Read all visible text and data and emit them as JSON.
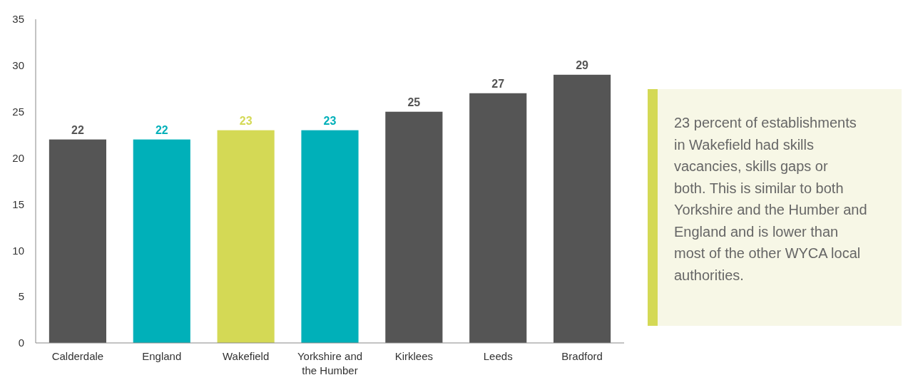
{
  "chart_data": {
    "type": "bar",
    "categories": [
      "Calderdale",
      "England",
      "Wakefield",
      "Yorkshire and the Humber",
      "Kirklees",
      "Leeds",
      "Bradford"
    ],
    "values": [
      22,
      22,
      23,
      23,
      25,
      27,
      29
    ],
    "colors": [
      "#555555",
      "#00b0b9",
      "#d4d955",
      "#00b0b9",
      "#555555",
      "#555555",
      "#555555"
    ],
    "ylim": [
      0,
      35
    ],
    "yticks": [
      0,
      5,
      10,
      15,
      20,
      25,
      30,
      35
    ],
    "grid": false,
    "data_labels": true,
    "annotations": [
      "23 percent of establishments in Wakefield had skills vacancies, skills gaps or both. This is similar to both Yorkshire and the Humber and England and is lower than most of the other WYCA local authorities."
    ]
  }
}
